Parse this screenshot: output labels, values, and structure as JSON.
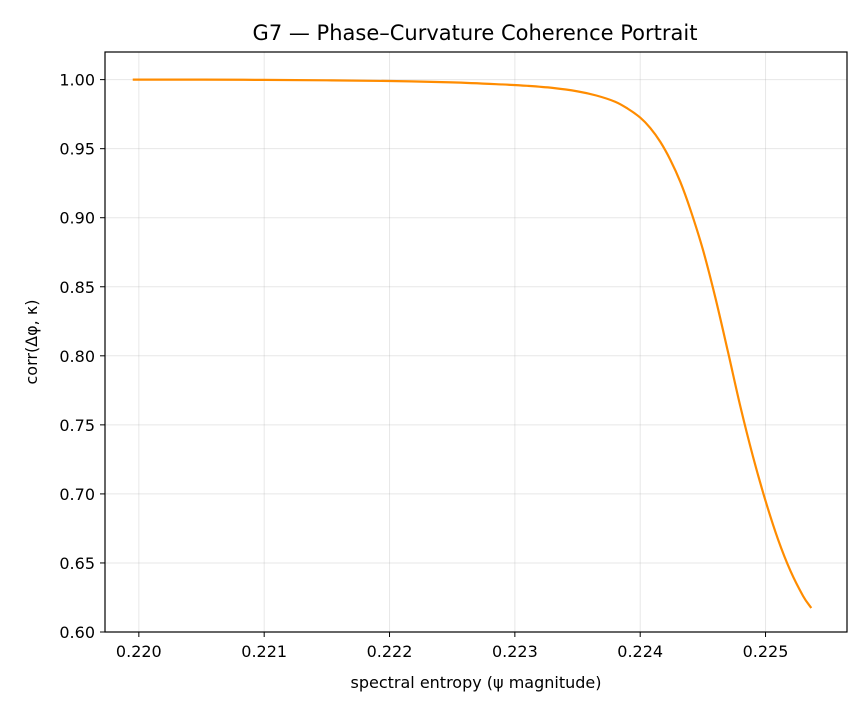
{
  "chart_data": {
    "type": "line",
    "title": "G7 — Phase–Curvature Coherence Portrait",
    "xlabel": "spectral entropy (ψ magnitude)",
    "ylabel": "corr(Δφ, κ)",
    "xlim": [
      0.21973,
      0.22565
    ],
    "ylim": [
      0.6,
      1.02
    ],
    "xticks": [
      0.22,
      0.221,
      0.222,
      0.223,
      0.224,
      0.225
    ],
    "xtick_labels": [
      "0.220",
      "0.221",
      "0.222",
      "0.223",
      "0.224",
      "0.225"
    ],
    "yticks": [
      0.6,
      0.65,
      0.7,
      0.75,
      0.8,
      0.85,
      0.9,
      0.95,
      1.0
    ],
    "ytick_labels": [
      "0.60",
      "0.65",
      "0.70",
      "0.75",
      "0.80",
      "0.85",
      "0.90",
      "0.95",
      "1.00"
    ],
    "grid": true,
    "series": [
      {
        "color": "#ff8c00",
        "x": [
          0.21996,
          0.2205,
          0.221,
          0.2215,
          0.222,
          0.2225,
          0.2229,
          0.2231,
          0.2233,
          0.2235,
          0.22365,
          0.2238,
          0.2239,
          0.224,
          0.22408,
          0.22416,
          0.22424,
          0.22432,
          0.2244,
          0.2245,
          0.2246,
          0.2247,
          0.2248,
          0.2249,
          0.225,
          0.2251,
          0.2252,
          0.2253,
          0.22536
        ],
        "y": [
          1.0,
          1.0,
          0.9998,
          0.9995,
          0.999,
          0.998,
          0.9965,
          0.9955,
          0.994,
          0.9915,
          0.9885,
          0.984,
          0.979,
          0.9725,
          0.965,
          0.955,
          0.942,
          0.926,
          0.906,
          0.877,
          0.842,
          0.803,
          0.763,
          0.727,
          0.695,
          0.667,
          0.644,
          0.626,
          0.618
        ]
      }
    ]
  }
}
